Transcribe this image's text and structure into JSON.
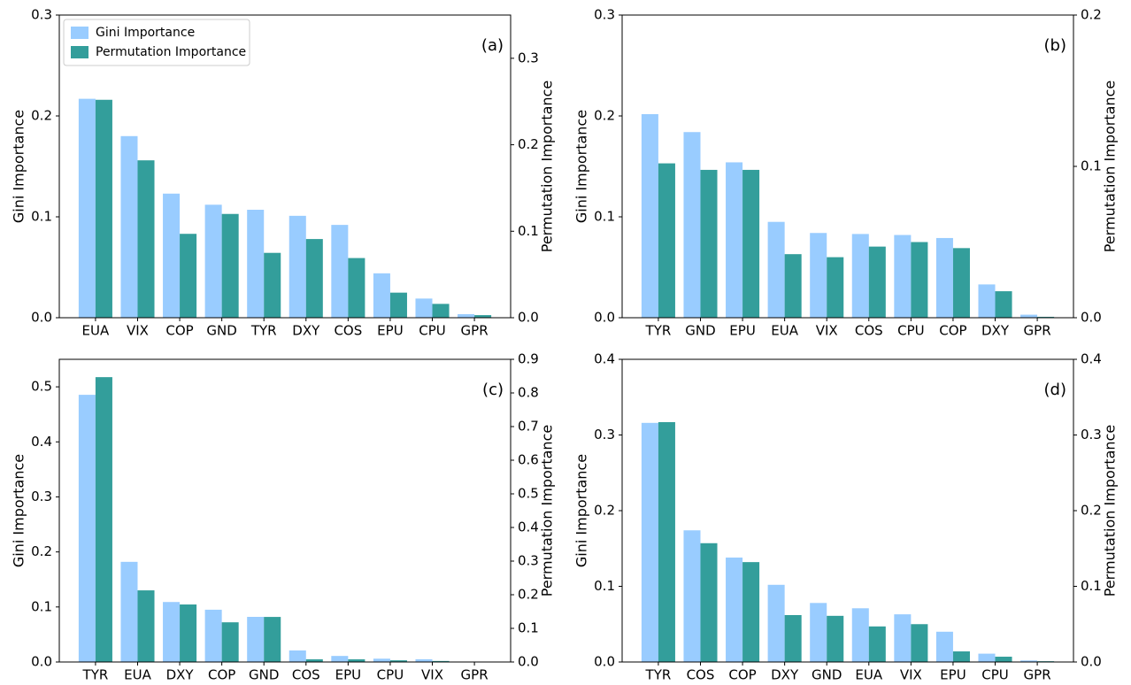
{
  "chart_data": [
    {
      "type": "bar",
      "annotation": "(a)",
      "ylabel": "Gini Importance",
      "y2label": "Permutation Importance",
      "legend": "upper left",
      "categories": [
        "EUA",
        "VIX",
        "COP",
        "GND",
        "TYR",
        "DXY",
        "COS",
        "EPU",
        "CPU",
        "GPR"
      ],
      "series": [
        {
          "name": "Gini Importance",
          "color": "#99ccff",
          "values": [
            0.217,
            0.18,
            0.123,
            0.112,
            0.107,
            0.101,
            0.092,
            0.044,
            0.019,
            0.0035
          ]
        },
        {
          "name": "Permutation Importance",
          "color": "#339e9b",
          "axis": "y2",
          "values": [
            0.252,
            0.182,
            0.097,
            0.12,
            0.075,
            0.091,
            0.069,
            0.029,
            0.016,
            0.003
          ]
        }
      ],
      "ylim": [
        0,
        0.3
      ],
      "yticks": [
        {
          "value": 0,
          "label": "0.0"
        },
        0.1,
        0.2,
        0.3
      ],
      "y2lim": [
        0,
        0.35
      ],
      "y2ticks": [
        {
          "value": 0,
          "label": "0.0"
        },
        0.1,
        0.2,
        0.3
      ]
    },
    {
      "type": "bar",
      "annotation": "(b)",
      "ylabel": "Gini Importance",
      "y2label": "Permutation Importance",
      "categories": [
        "TYR",
        "GND",
        "EPU",
        "EUA",
        "VIX",
        "COS",
        "CPU",
        "COP",
        "DXY",
        "GPR"
      ],
      "series": [
        {
          "color": "#99ccff",
          "values": [
            0.2018,
            0.184,
            0.154,
            0.095,
            0.084,
            0.083,
            0.082,
            0.079,
            0.033,
            0.003
          ]
        },
        {
          "color": "#339e9b",
          "axis": "y2",
          "values": [
            0.102,
            0.0977,
            0.0977,
            0.042,
            0.04,
            0.047,
            0.05,
            0.046,
            0.0175,
            0.0006
          ]
        }
      ],
      "ylim": [
        0,
        0.3
      ],
      "yticks": [
        {
          "value": 0,
          "label": "0.0"
        },
        0.1,
        0.2,
        0.3
      ],
      "y2lim": [
        0,
        0.2
      ],
      "y2ticks": [
        {
          "value": 0,
          "label": "0.0"
        },
        0.1,
        0.2
      ]
    },
    {
      "type": "bar",
      "annotation": "(c)",
      "ylabel": "Gini Importance",
      "y2label": "Permutation Importance",
      "categories": [
        "TYR",
        "EUA",
        "DXY",
        "COP",
        "GND",
        "COS",
        "EPU",
        "CPU",
        "VIX",
        "GPR"
      ],
      "series": [
        {
          "color": "#99ccff",
          "values": [
            0.4855,
            0.182,
            0.109,
            0.095,
            0.082,
            0.021,
            0.011,
            0.006,
            0.005,
            0.0005
          ]
        },
        {
          "color": "#339e9b",
          "axis": "y2",
          "values": [
            0.847,
            0.213,
            0.171,
            0.118,
            0.134,
            0.008,
            0.008,
            0.005,
            0.003,
            0
          ]
        }
      ],
      "ylim": [
        0,
        0.55
      ],
      "yticks": [
        {
          "value": 0,
          "label": "0.0"
        },
        0.1,
        0.2,
        0.3,
        0.4,
        0.5
      ],
      "y2lim": [
        0,
        0.9
      ],
      "y2ticks": [
        {
          "value": 0,
          "label": "0.0"
        },
        0.1,
        0.2,
        0.3,
        0.4,
        0.5,
        0.6,
        0.7,
        0.8,
        0.9
      ]
    },
    {
      "type": "bar",
      "annotation": "(d)",
      "ylabel": "Gini Importance",
      "y2label": "Permutation Importance",
      "categories": [
        "TYR",
        "COS",
        "COP",
        "DXY",
        "GND",
        "EUA",
        "VIX",
        "EPU",
        "CPU",
        "GPR"
      ],
      "series": [
        {
          "color": "#99ccff",
          "values": [
            0.316,
            0.174,
            0.138,
            0.102,
            0.078,
            0.071,
            0.063,
            0.04,
            0.011,
            0.002
          ]
        },
        {
          "color": "#339e9b",
          "axis": "y2",
          "values": [
            0.317,
            0.157,
            0.132,
            0.062,
            0.061,
            0.047,
            0.05,
            0.014,
            0.007,
            0.001
          ]
        }
      ],
      "ylim": [
        0,
        0.4
      ],
      "yticks": [
        {
          "value": 0,
          "label": "0.0"
        },
        0.1,
        0.2,
        0.3,
        0.4
      ],
      "y2lim": [
        0,
        0.4
      ],
      "y2ticks": [
        {
          "value": 0,
          "label": "0.0"
        },
        0.1,
        0.2,
        0.3,
        0.4
      ]
    }
  ]
}
